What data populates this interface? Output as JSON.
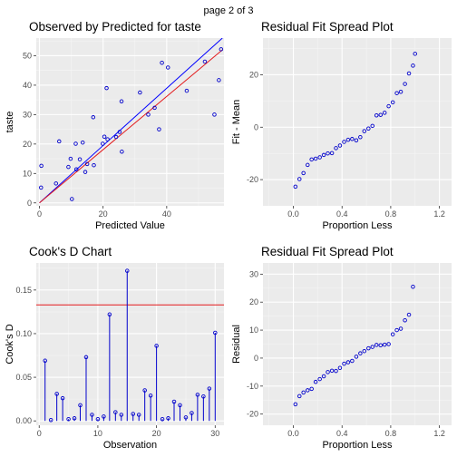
{
  "page": {
    "header": "page 2 of 3"
  },
  "colors": {
    "panel_bg": "#ebebeb",
    "grid_major": "#ffffff",
    "grid_minor": "#f5f5f5",
    "point": "#0000cc",
    "red_line": "#e31a1c",
    "blue_line": "#0000ff",
    "tick_text": "#4d4d4d"
  },
  "chart_data": [
    {
      "id": "obs_pred",
      "type": "scatter",
      "title": "Observed by Predicted for taste",
      "xlabel": "Predicted Value",
      "ylabel": "taste",
      "xlim": [
        -1,
        58
      ],
      "ylim": [
        -1,
        56
      ],
      "xticks": [
        0,
        20,
        40,
        60
      ],
      "yticks": [
        0,
        10,
        20,
        30,
        40,
        50
      ],
      "grid": true,
      "points": [
        [
          0.5,
          5.2
        ],
        [
          0.6,
          12.6
        ],
        [
          5.2,
          6.6
        ],
        [
          6.2,
          20.9
        ],
        [
          9.1,
          12.2
        ],
        [
          9.8,
          15.0
        ],
        [
          10.2,
          1.3
        ],
        [
          11.4,
          20.1
        ],
        [
          11.6,
          11.4
        ],
        [
          12.7,
          14.8
        ],
        [
          13.6,
          20.5
        ],
        [
          14.4,
          10.5
        ],
        [
          15.0,
          13.2
        ],
        [
          16.9,
          29.1
        ],
        [
          17.1,
          12.8
        ],
        [
          19.9,
          20.1
        ],
        [
          20.4,
          22.5
        ],
        [
          21.1,
          39.0
        ],
        [
          21.4,
          21.6
        ],
        [
          24.1,
          22.4
        ],
        [
          25.2,
          24.1
        ],
        [
          25.8,
          34.5
        ],
        [
          25.9,
          17.4
        ],
        [
          31.6,
          37.5
        ],
        [
          34.2,
          30.0
        ],
        [
          36.2,
          32.3
        ],
        [
          37.6,
          25.0
        ],
        [
          38.5,
          47.6
        ],
        [
          40.4,
          46.0
        ],
        [
          46.3,
          38.1
        ],
        [
          55.0,
          30.0
        ],
        [
          56.4,
          41.7
        ],
        [
          57.1,
          52.2
        ],
        [
          52.0,
          48.0
        ]
      ],
      "reference_lines": [
        {
          "name": "",
          "color": "blue",
          "from": [
            0,
            0
          ],
          "to": [
            57.5,
            56
          ]
        },
        {
          "name": "",
          "color": "red",
          "from": [
            0,
            0
          ],
          "to": [
            57.5,
            52
          ]
        }
      ]
    },
    {
      "id": "rfs_fit",
      "type": "scatter",
      "title": "Residual Fit Spread Plot",
      "xlabel": "Proportion Less",
      "ylabel": "Fit - Mean",
      "xlim": [
        -0.25,
        1.3
      ],
      "ylim": [
        -30,
        34
      ],
      "xticks": [
        0.0,
        0.4,
        0.8,
        1.2
      ],
      "xtick_labels": [
        "0.0",
        "0.4",
        "0.8",
        "1.2"
      ],
      "yticks": [
        -20,
        0,
        20
      ],
      "grid": true,
      "points": [
        [
          0.017,
          -22.7
        ],
        [
          0.05,
          -19.8
        ],
        [
          0.083,
          -17.5
        ],
        [
          0.117,
          -14.4
        ],
        [
          0.15,
          -12.3
        ],
        [
          0.183,
          -12.0
        ],
        [
          0.217,
          -11.5
        ],
        [
          0.25,
          -10.6
        ],
        [
          0.283,
          -10.0
        ],
        [
          0.317,
          -9.9
        ],
        [
          0.35,
          -8.0
        ],
        [
          0.383,
          -7.0
        ],
        [
          0.417,
          -5.6
        ],
        [
          0.45,
          -4.8
        ],
        [
          0.483,
          -4.5
        ],
        [
          0.517,
          -5.0
        ],
        [
          0.55,
          -3.8
        ],
        [
          0.583,
          -1.5
        ],
        [
          0.617,
          -0.5
        ],
        [
          0.65,
          0.5
        ],
        [
          0.683,
          4.5
        ],
        [
          0.717,
          4.7
        ],
        [
          0.75,
          5.5
        ],
        [
          0.783,
          8.0
        ],
        [
          0.817,
          9.5
        ],
        [
          0.85,
          13.0
        ],
        [
          0.883,
          13.5
        ],
        [
          0.917,
          16.5
        ],
        [
          0.95,
          20.5
        ],
        [
          0.983,
          23.5
        ],
        [
          1.0,
          28.0
        ]
      ]
    },
    {
      "id": "cooks_d",
      "type": "bar",
      "title": "Cook's D Chart",
      "xlabel": "Observation",
      "ylabel": "Cook's D",
      "xlim": [
        -0.5,
        31.5
      ],
      "ylim": [
        -0.005,
        0.181
      ],
      "xticks": [
        0,
        10,
        20,
        30
      ],
      "yticks": [
        0.0,
        0.05,
        0.1,
        0.15
      ],
      "ytick_labels": [
        "0.00",
        "0.05",
        "0.10",
        "0.15"
      ],
      "threshold": 0.133,
      "grid": true,
      "x": [
        1,
        2,
        3,
        4,
        5,
        6,
        7,
        8,
        9,
        10,
        11,
        12,
        13,
        14,
        15,
        16,
        17,
        18,
        19,
        20,
        21,
        22,
        23,
        24,
        25,
        26,
        27,
        28,
        29,
        30
      ],
      "values": [
        0.069,
        0.001,
        0.031,
        0.026,
        0.002,
        0.003,
        0.018,
        0.073,
        0.007,
        0.002,
        0.005,
        0.122,
        0.01,
        0.007,
        0.172,
        0.008,
        0.007,
        0.035,
        0.029,
        0.086,
        0.002,
        0.003,
        0.022,
        0.018,
        0.004,
        0.009,
        0.03,
        0.028,
        0.037,
        0.101
      ]
    },
    {
      "id": "rfs_resid",
      "type": "scatter",
      "title": "Residual Fit Spread Plot",
      "xlabel": "Proportion Less",
      "ylabel": "Residual",
      "xlim": [
        -0.25,
        1.3
      ],
      "ylim": [
        -24,
        34
      ],
      "xticks": [
        0.0,
        0.4,
        0.8,
        1.2
      ],
      "xtick_labels": [
        "0.0",
        "0.4",
        "0.8",
        "1.2"
      ],
      "yticks": [
        -20,
        -10,
        0,
        10,
        20,
        30
      ],
      "grid": true,
      "points": [
        [
          0.017,
          -16.5
        ],
        [
          0.05,
          -13.6
        ],
        [
          0.083,
          -12.3
        ],
        [
          0.117,
          -11.5
        ],
        [
          0.15,
          -11.0
        ],
        [
          0.183,
          -8.5
        ],
        [
          0.217,
          -7.5
        ],
        [
          0.25,
          -6.5
        ],
        [
          0.283,
          -5.0
        ],
        [
          0.317,
          -4.5
        ],
        [
          0.35,
          -4.6
        ],
        [
          0.383,
          -3.5
        ],
        [
          0.417,
          -2.0
        ],
        [
          0.45,
          -1.5
        ],
        [
          0.483,
          -1.0
        ],
        [
          0.517,
          0.5
        ],
        [
          0.55,
          1.7
        ],
        [
          0.583,
          2.5
        ],
        [
          0.617,
          3.5
        ],
        [
          0.65,
          4.0
        ],
        [
          0.683,
          4.7
        ],
        [
          0.717,
          4.6
        ],
        [
          0.75,
          4.8
        ],
        [
          0.783,
          5.0
        ],
        [
          0.817,
          8.5
        ],
        [
          0.85,
          10.0
        ],
        [
          0.883,
          10.5
        ],
        [
          0.917,
          13.5
        ],
        [
          0.95,
          15.5
        ],
        [
          0.983,
          25.5
        ]
      ]
    }
  ]
}
